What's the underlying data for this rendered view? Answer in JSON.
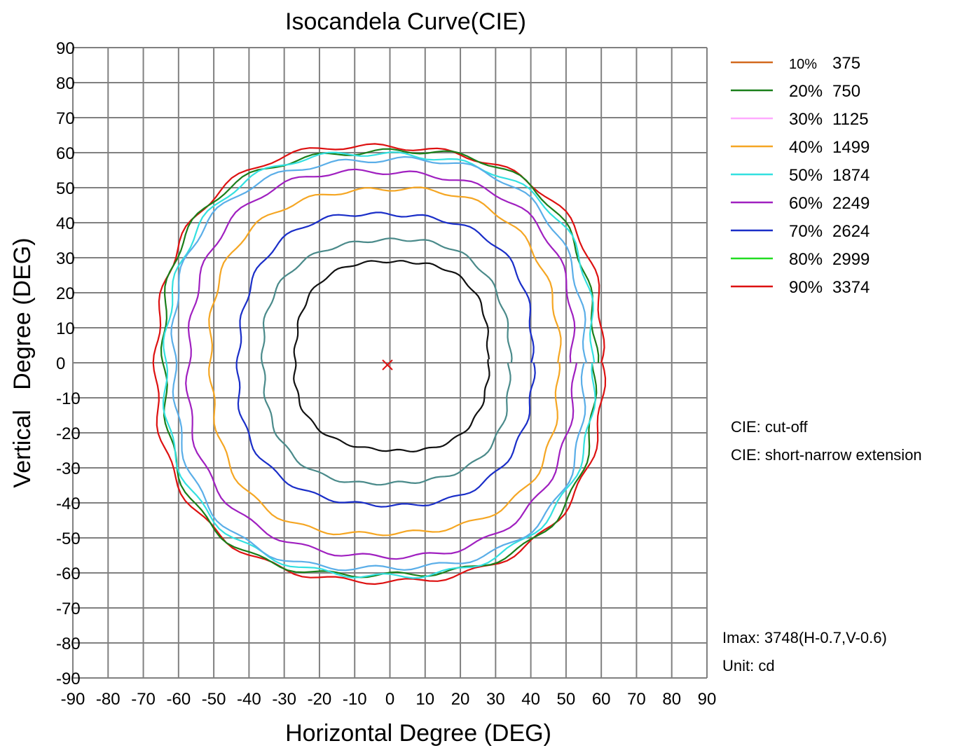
{
  "chart_data": {
    "type": "line",
    "title": "Isocandela Curve(CIE)",
    "xlabel": "Horizontal Degree (DEG)",
    "ylabel": "Vertical   Degree (DEG)",
    "xlim": [
      -90,
      90
    ],
    "ylim": [
      -90,
      90
    ],
    "xticks": [
      "-90",
      "-80",
      "-70",
      "-60",
      "-50",
      "-40",
      "-30",
      "-20",
      "-10",
      "0",
      "10",
      "20",
      "30",
      "40",
      "50",
      "60",
      "70",
      "80",
      "90"
    ],
    "yticks": [
      "90",
      "80",
      "70",
      "60",
      "50",
      "40",
      "30",
      "20",
      "10",
      "0",
      "-10",
      "-20",
      "-30",
      "-40",
      "-50",
      "-60",
      "-70",
      "-80",
      "-90"
    ],
    "grid": true,
    "grid_color": "#808080",
    "legend_position": "right",
    "legend": [
      {
        "percent": "10%",
        "value": "375",
        "color": "#d2691e"
      },
      {
        "percent": "20%",
        "value": "750",
        "color": "#1a7f1a"
      },
      {
        "percent": "30%",
        "value": "1125",
        "color": "#ffaaff"
      },
      {
        "percent": "40%",
        "value": "1499",
        "color": "#f5a623"
      },
      {
        "percent": "50%",
        "value": "1874",
        "color": "#33e0e0"
      },
      {
        "percent": "60%",
        "value": "2249",
        "color": "#a020c0"
      },
      {
        "percent": "70%",
        "value": "2624",
        "color": "#1a2ec8"
      },
      {
        "percent": "80%",
        "value": "2999",
        "color": "#22dd22"
      },
      {
        "percent": "90%",
        "value": "3374",
        "color": "#dd1111"
      }
    ],
    "series": [
      {
        "color": "#dd1111",
        "center": [
          -2,
          0
        ],
        "rx_left": 64,
        "rx_right": 62,
        "ry_top": 61.5,
        "ry_bottom": 62
      },
      {
        "color": "#1a7f1a",
        "center": [
          -2,
          0
        ],
        "rx_left": 62.5,
        "rx_right": 60.5,
        "ry_top": 60.5,
        "ry_bottom": 61
      },
      {
        "color": "#33e0e0",
        "center": [
          -2,
          0
        ],
        "rx_left": 61.5,
        "rx_right": 59.5,
        "ry_top": 59.5,
        "ry_bottom": 60.5
      },
      {
        "color": "#5aaee8",
        "center": [
          -2,
          0
        ],
        "rx_left": 59.5,
        "rx_right": 57.5,
        "ry_top": 58,
        "ry_bottom": 59
      },
      {
        "color": "#a020c0",
        "center": [
          -2,
          0
        ],
        "rx_left": 55,
        "rx_right": 54,
        "ry_top": 54.5,
        "ry_bottom": 55
      },
      {
        "color": "#f5a623",
        "center": [
          -2,
          0
        ],
        "rx_left": 49,
        "rx_right": 50,
        "ry_top": 49.5,
        "ry_bottom": 49
      },
      {
        "color": "#1a2ec8",
        "center": [
          -1,
          0
        ],
        "rx_left": 42,
        "rx_right": 41.5,
        "ry_top": 42.5,
        "ry_bottom": 40.5
      },
      {
        "color": "#4a8a8a",
        "center": [
          0,
          0
        ],
        "rx_left": 36,
        "rx_right": 34,
        "ry_top": 35,
        "ry_bottom": 34.5
      },
      {
        "color": "#111111",
        "center": [
          2,
          1
        ],
        "rx_left": 29,
        "rx_right": 26,
        "ry_top": 28,
        "ry_bottom": 26
      }
    ],
    "imax_marker": {
      "x": -0.7,
      "y": -0.6,
      "color": "#dd1111"
    },
    "annotations": [
      "CIE: cut-off",
      "CIE: short-narrow extension"
    ],
    "imax_text": "Imax: 3748(H-0.7,V-0.6)",
    "unit_text": "Unit: cd"
  }
}
